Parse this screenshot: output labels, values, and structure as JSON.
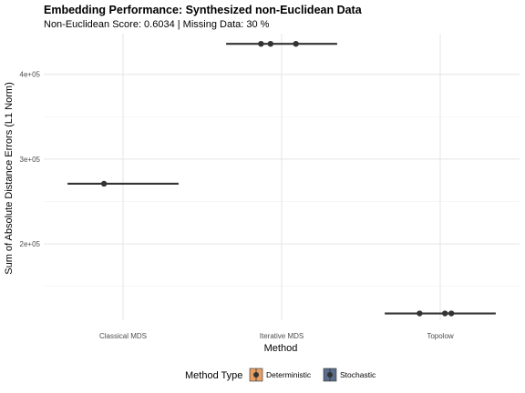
{
  "chart_data": {
    "type": "scatter",
    "title": "Embedding Performance: Synthesized non-Euclidean Data",
    "subtitle": "Non-Euclidean Score: 0.6034 | Missing Data: 30 %",
    "xlabel": "Method",
    "ylabel": "Sum of Absolute Distance Errors (L1 Norm)",
    "categories": [
      "Classical MDS",
      "Iterative MDS",
      "Topolow"
    ],
    "ylim": [
      110000,
      448000
    ],
    "yticks": [
      200000,
      300000,
      400000
    ],
    "ytick_labels": [
      "2e+05",
      "3e+05",
      "4e+05"
    ],
    "grid": true,
    "points": [
      {
        "category": "Classical MDS",
        "y": 271000
      },
      {
        "category": "Iterative MDS",
        "y": 436000
      },
      {
        "category": "Iterative MDS",
        "y": 436000
      },
      {
        "category": "Iterative MDS",
        "y": 436000
      },
      {
        "category": "Topolow",
        "y": 118000
      },
      {
        "category": "Topolow",
        "y": 118000
      },
      {
        "category": "Topolow",
        "y": 118000
      }
    ],
    "summary_lines": [
      {
        "category": "Classical MDS",
        "y": 271000
      },
      {
        "category": "Iterative MDS",
        "y": 436000
      },
      {
        "category": "Topolow",
        "y": 118000
      }
    ],
    "legend": {
      "title": "Method Type",
      "position": "bottom",
      "entries": [
        {
          "label": "Deterministic",
          "color": "#E69F65"
        },
        {
          "label": "Stochastic",
          "color": "#5A6E8C"
        }
      ]
    },
    "colors": {
      "point": "#333333",
      "line": "#333333",
      "grid": "#e5e5e5"
    }
  }
}
